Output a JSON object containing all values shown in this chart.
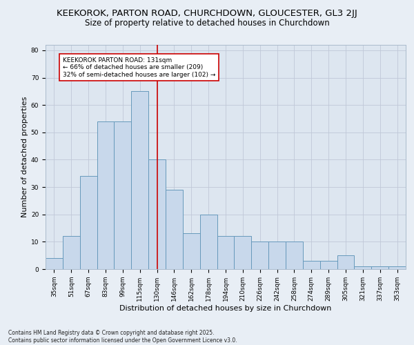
{
  "title": "KEEKOROK, PARTON ROAD, CHURCHDOWN, GLOUCESTER, GL3 2JJ",
  "subtitle": "Size of property relative to detached houses in Churchdown",
  "xlabel": "Distribution of detached houses by size in Churchdown",
  "ylabel": "Number of detached properties",
  "categories": [
    "35sqm",
    "51sqm",
    "67sqm",
    "83sqm",
    "99sqm",
    "115sqm",
    "130sqm",
    "146sqm",
    "162sqm",
    "178sqm",
    "194sqm",
    "210sqm",
    "226sqm",
    "242sqm",
    "258sqm",
    "274sqm",
    "289sqm",
    "305sqm",
    "321sqm",
    "337sqm",
    "353sqm"
  ],
  "values": [
    4,
    12,
    34,
    54,
    54,
    65,
    40,
    29,
    13,
    20,
    12,
    12,
    10,
    10,
    10,
    3,
    3,
    5,
    1,
    1,
    1
  ],
  "bar_color": "#c8d8eb",
  "bar_edge_color": "#6699bb",
  "annotation_text": "KEEKOROK PARTON ROAD: 131sqm\n← 66% of detached houses are smaller (209)\n32% of semi-detached houses are larger (102) →",
  "annotation_box_color": "#ffffff",
  "annotation_border_color": "#cc0000",
  "vline_color": "#cc0000",
  "vline_x": 6.0,
  "ylim": [
    0,
    82
  ],
  "yticks": [
    0,
    10,
    20,
    30,
    40,
    50,
    60,
    70,
    80
  ],
  "grid_color": "#c0c8d8",
  "bg_color": "#dde6f0",
  "fig_bg_color": "#e8eef5",
  "footer": "Contains HM Land Registry data © Crown copyright and database right 2025.\nContains public sector information licensed under the Open Government Licence v3.0.",
  "title_fontsize": 9.5,
  "subtitle_fontsize": 8.5,
  "axis_label_fontsize": 8,
  "tick_fontsize": 6.5,
  "annotation_fontsize": 6.5,
  "footer_fontsize": 5.5
}
